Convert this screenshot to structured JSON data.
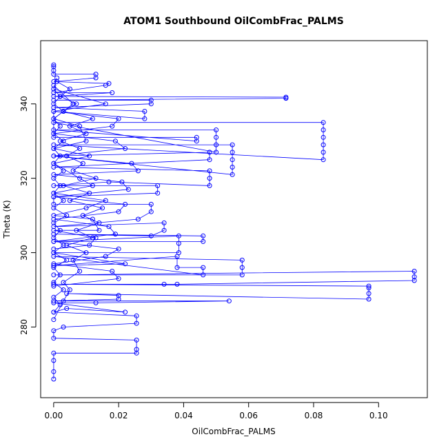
{
  "chart_data": {
    "type": "scatter",
    "title": "ATOM1 Southbound OilCombFrac_PALMS",
    "xlabel": "OilCombFrac_PALMS",
    "ylabel": "Theta (K)",
    "xlim": [
      -0.004,
      0.115
    ],
    "ylim": [
      261,
      357
    ],
    "x_ticks": [
      0.0,
      0.02,
      0.04,
      0.06,
      0.08,
      0.1
    ],
    "x_tick_labels": [
      "0.00",
      "0.02",
      "0.04",
      "0.06",
      "0.08",
      "0.10"
    ],
    "y_ticks": [
      280,
      300,
      320,
      340
    ],
    "y_tick_labels": [
      "280",
      "300",
      "320",
      "340"
    ],
    "grid": false,
    "legend": "none",
    "marker": "open-circle",
    "connected_by_lines": true,
    "color": "#0000ff",
    "series": [
      {
        "points": [
          {
            "x": 0.0,
            "y": 266
          },
          {
            "x": 0.0,
            "y": 268
          },
          {
            "x": 0.0,
            "y": 271
          },
          {
            "x": 0.0,
            "y": 273
          },
          {
            "x": 0.0255,
            "y": 273
          },
          {
            "x": 0.0255,
            "y": 274
          },
          {
            "x": 0.0255,
            "y": 276.5
          },
          {
            "x": 0.0,
            "y": 277
          },
          {
            "x": 0.0,
            "y": 279
          },
          {
            "x": 0.003,
            "y": 280
          },
          {
            "x": 0.0255,
            "y": 281
          },
          {
            "x": 0.0255,
            "y": 283
          },
          {
            "x": 0.0,
            "y": 284
          },
          {
            "x": 0.004,
            "y": 285
          },
          {
            "x": 0.022,
            "y": 284
          },
          {
            "x": 0.0,
            "y": 286.5
          },
          {
            "x": 0.013,
            "y": 286.5
          },
          {
            "x": 0.054,
            "y": 287
          },
          {
            "x": 0.0,
            "y": 287
          },
          {
            "x": 0.02,
            "y": 287.5
          },
          {
            "x": 0.02,
            "y": 288.5
          },
          {
            "x": 0.004,
            "y": 289
          },
          {
            "x": 0.097,
            "y": 287.5
          },
          {
            "x": 0.097,
            "y": 289
          },
          {
            "x": 0.097,
            "y": 290.5
          },
          {
            "x": 0.097,
            "y": 291
          },
          {
            "x": 0.0,
            "y": 291.5
          },
          {
            "x": 0.034,
            "y": 291.5
          },
          {
            "x": 0.038,
            "y": 291.5
          },
          {
            "x": 0.111,
            "y": 292.5
          },
          {
            "x": 0.111,
            "y": 293.5
          },
          {
            "x": 0.111,
            "y": 295
          },
          {
            "x": 0.0,
            "y": 294
          },
          {
            "x": 0.058,
            "y": 294
          },
          {
            "x": 0.058,
            "y": 296
          },
          {
            "x": 0.058,
            "y": 298
          },
          {
            "x": 0.0,
            "y": 299
          },
          {
            "x": 0.046,
            "y": 294
          },
          {
            "x": 0.046,
            "y": 296
          },
          {
            "x": 0.038,
            "y": 296
          },
          {
            "x": 0.038,
            "y": 299
          },
          {
            "x": 0.0,
            "y": 296.5
          },
          {
            "x": 0.022,
            "y": 297
          },
          {
            "x": 0.0,
            "y": 300
          },
          {
            "x": 0.0385,
            "y": 300
          },
          {
            "x": 0.0385,
            "y": 302.5
          },
          {
            "x": 0.0385,
            "y": 304.5
          },
          {
            "x": 0.0,
            "y": 303
          },
          {
            "x": 0.046,
            "y": 303
          },
          {
            "x": 0.046,
            "y": 304.5
          },
          {
            "x": 0.0,
            "y": 305
          },
          {
            "x": 0.03,
            "y": 304.5
          },
          {
            "x": 0.034,
            "y": 306
          },
          {
            "x": 0.034,
            "y": 308
          },
          {
            "x": 0.0,
            "y": 307
          },
          {
            "x": 0.026,
            "y": 309
          },
          {
            "x": 0.03,
            "y": 311
          },
          {
            "x": 0.03,
            "y": 313
          },
          {
            "x": 0.0,
            "y": 313
          },
          {
            "x": 0.0,
            "y": 315
          },
          {
            "x": 0.032,
            "y": 316
          },
          {
            "x": 0.032,
            "y": 318
          },
          {
            "x": 0.0,
            "y": 318
          },
          {
            "x": 0.017,
            "y": 319
          },
          {
            "x": 0.048,
            "y": 318
          },
          {
            "x": 0.048,
            "y": 320
          },
          {
            "x": 0.048,
            "y": 322
          },
          {
            "x": 0.0,
            "y": 323
          },
          {
            "x": 0.048,
            "y": 325
          },
          {
            "x": 0.048,
            "y": 327
          },
          {
            "x": 0.0,
            "y": 326
          },
          {
            "x": 0.055,
            "y": 321
          },
          {
            "x": 0.055,
            "y": 323
          },
          {
            "x": 0.055,
            "y": 325
          },
          {
            "x": 0.055,
            "y": 327
          },
          {
            "x": 0.055,
            "y": 329
          },
          {
            "x": 0.0,
            "y": 329
          },
          {
            "x": 0.083,
            "y": 325
          },
          {
            "x": 0.083,
            "y": 327
          },
          {
            "x": 0.083,
            "y": 329
          },
          {
            "x": 0.083,
            "y": 331
          },
          {
            "x": 0.083,
            "y": 333
          },
          {
            "x": 0.083,
            "y": 335
          },
          {
            "x": 0.0,
            "y": 335
          },
          {
            "x": 0.05,
            "y": 327
          },
          {
            "x": 0.05,
            "y": 329
          },
          {
            "x": 0.05,
            "y": 331
          },
          {
            "x": 0.05,
            "y": 333
          },
          {
            "x": 0.0,
            "y": 333
          },
          {
            "x": 0.044,
            "y": 330
          },
          {
            "x": 0.044,
            "y": 331
          },
          {
            "x": 0.0,
            "y": 331
          },
          {
            "x": 0.0,
            "y": 338
          },
          {
            "x": 0.028,
            "y": 336
          },
          {
            "x": 0.028,
            "y": 338
          },
          {
            "x": 0.0,
            "y": 339
          },
          {
            "x": 0.03,
            "y": 340
          },
          {
            "x": 0.03,
            "y": 341
          },
          {
            "x": 0.0,
            "y": 341
          },
          {
            "x": 0.0715,
            "y": 341.5
          },
          {
            "x": 0.0715,
            "y": 341.8
          },
          {
            "x": 0.0,
            "y": 342
          },
          {
            "x": 0.018,
            "y": 343
          },
          {
            "x": 0.0,
            "y": 343
          },
          {
            "x": 0.016,
            "y": 345
          },
          {
            "x": 0.017,
            "y": 345.5
          },
          {
            "x": 0.0,
            "y": 346
          },
          {
            "x": 0.013,
            "y": 347
          },
          {
            "x": 0.013,
            "y": 348
          },
          {
            "x": 0.0,
            "y": 348
          },
          {
            "x": 0.0,
            "y": 349
          },
          {
            "x": 0.0,
            "y": 350
          },
          {
            "x": 0.0,
            "y": 350.5
          }
        ]
      },
      {
        "points": [
          {
            "x": 0.0,
            "y": 282
          },
          {
            "x": 0.003,
            "y": 287
          },
          {
            "x": 0.005,
            "y": 290
          },
          {
            "x": 0.003,
            "y": 292
          },
          {
            "x": 0.008,
            "y": 295
          },
          {
            "x": 0.006,
            "y": 298
          },
          {
            "x": 0.01,
            "y": 300
          },
          {
            "x": 0.004,
            "y": 302
          },
          {
            "x": 0.012,
            "y": 304
          },
          {
            "x": 0.007,
            "y": 306
          },
          {
            "x": 0.014,
            "y": 308
          },
          {
            "x": 0.009,
            "y": 310
          },
          {
            "x": 0.015,
            "y": 312
          },
          {
            "x": 0.005,
            "y": 314
          },
          {
            "x": 0.011,
            "y": 316
          },
          {
            "x": 0.003,
            "y": 318
          },
          {
            "x": 0.013,
            "y": 320
          },
          {
            "x": 0.006,
            "y": 322
          },
          {
            "x": 0.009,
            "y": 324
          },
          {
            "x": 0.004,
            "y": 326
          },
          {
            "x": 0.008,
            "y": 328
          },
          {
            "x": 0.002,
            "y": 330
          },
          {
            "x": 0.01,
            "y": 332
          },
          {
            "x": 0.005,
            "y": 334
          },
          {
            "x": 0.012,
            "y": 336
          },
          {
            "x": 0.003,
            "y": 338
          },
          {
            "x": 0.007,
            "y": 340
          },
          {
            "x": 0.002,
            "y": 342
          },
          {
            "x": 0.005,
            "y": 344
          },
          {
            "x": 0.001,
            "y": 346
          }
        ]
      },
      {
        "points": [
          {
            "x": 0.0,
            "y": 291
          },
          {
            "x": 0.02,
            "y": 293
          },
          {
            "x": 0.018,
            "y": 295
          },
          {
            "x": 0.0,
            "y": 297
          },
          {
            "x": 0.016,
            "y": 299
          },
          {
            "x": 0.02,
            "y": 301
          },
          {
            "x": 0.0,
            "y": 303
          },
          {
            "x": 0.019,
            "y": 305
          },
          {
            "x": 0.017,
            "y": 307
          },
          {
            "x": 0.0,
            "y": 309
          },
          {
            "x": 0.02,
            "y": 311
          },
          {
            "x": 0.022,
            "y": 313
          },
          {
            "x": 0.0,
            "y": 315
          },
          {
            "x": 0.023,
            "y": 317
          },
          {
            "x": 0.021,
            "y": 319
          },
          {
            "x": 0.0,
            "y": 321
          },
          {
            "x": 0.026,
            "y": 322
          },
          {
            "x": 0.024,
            "y": 324
          },
          {
            "x": 0.0,
            "y": 326
          },
          {
            "x": 0.022,
            "y": 328
          },
          {
            "x": 0.019,
            "y": 330
          },
          {
            "x": 0.0,
            "y": 332
          },
          {
            "x": 0.018,
            "y": 334
          },
          {
            "x": 0.02,
            "y": 336
          },
          {
            "x": 0.0,
            "y": 338
          },
          {
            "x": 0.016,
            "y": 340
          },
          {
            "x": 0.0,
            "y": 344
          }
        ]
      },
      {
        "points": [
          {
            "x": 0.0,
            "y": 301
          },
          {
            "x": 0.011,
            "y": 302
          },
          {
            "x": 0.013,
            "y": 304
          },
          {
            "x": 0.0,
            "y": 306
          },
          {
            "x": 0.014,
            "y": 306
          },
          {
            "x": 0.012,
            "y": 309
          },
          {
            "x": 0.0,
            "y": 310
          },
          {
            "x": 0.01,
            "y": 312
          },
          {
            "x": 0.016,
            "y": 314
          },
          {
            "x": 0.0,
            "y": 316
          },
          {
            "x": 0.012,
            "y": 318
          },
          {
            "x": 0.008,
            "y": 320
          },
          {
            "x": 0.0,
            "y": 324
          },
          {
            "x": 0.011,
            "y": 326
          },
          {
            "x": 0.0,
            "y": 328
          },
          {
            "x": 0.01,
            "y": 330
          },
          {
            "x": 0.008,
            "y": 334
          },
          {
            "x": 0.0,
            "y": 336
          },
          {
            "x": 0.006,
            "y": 340
          },
          {
            "x": 0.0,
            "y": 345
          }
        ]
      },
      {
        "points": [
          {
            "x": 0.0,
            "y": 284
          },
          {
            "x": 0.002,
            "y": 286
          },
          {
            "x": 0.0,
            "y": 288
          },
          {
            "x": 0.003,
            "y": 290
          },
          {
            "x": 0.0,
            "y": 292
          },
          {
            "x": 0.002,
            "y": 294
          },
          {
            "x": 0.0,
            "y": 296
          },
          {
            "x": 0.004,
            "y": 298
          },
          {
            "x": 0.0,
            "y": 300
          },
          {
            "x": 0.003,
            "y": 302
          },
          {
            "x": 0.0,
            "y": 304
          },
          {
            "x": 0.002,
            "y": 306
          },
          {
            "x": 0.0,
            "y": 308
          },
          {
            "x": 0.004,
            "y": 310
          },
          {
            "x": 0.0,
            "y": 312
          },
          {
            "x": 0.003,
            "y": 314
          },
          {
            "x": 0.0,
            "y": 316
          },
          {
            "x": 0.002,
            "y": 318
          },
          {
            "x": 0.0,
            "y": 320
          },
          {
            "x": 0.003,
            "y": 322
          },
          {
            "x": 0.0,
            "y": 324
          },
          {
            "x": 0.002,
            "y": 326
          },
          {
            "x": 0.0,
            "y": 328
          },
          {
            "x": 0.003,
            "y": 330
          },
          {
            "x": 0.0,
            "y": 332
          },
          {
            "x": 0.002,
            "y": 334
          },
          {
            "x": 0.0,
            "y": 336
          },
          {
            "x": 0.003,
            "y": 338
          },
          {
            "x": 0.0,
            "y": 340
          },
          {
            "x": 0.002,
            "y": 342
          },
          {
            "x": 0.0,
            "y": 344
          },
          {
            "x": 0.001,
            "y": 347
          }
        ]
      }
    ]
  }
}
